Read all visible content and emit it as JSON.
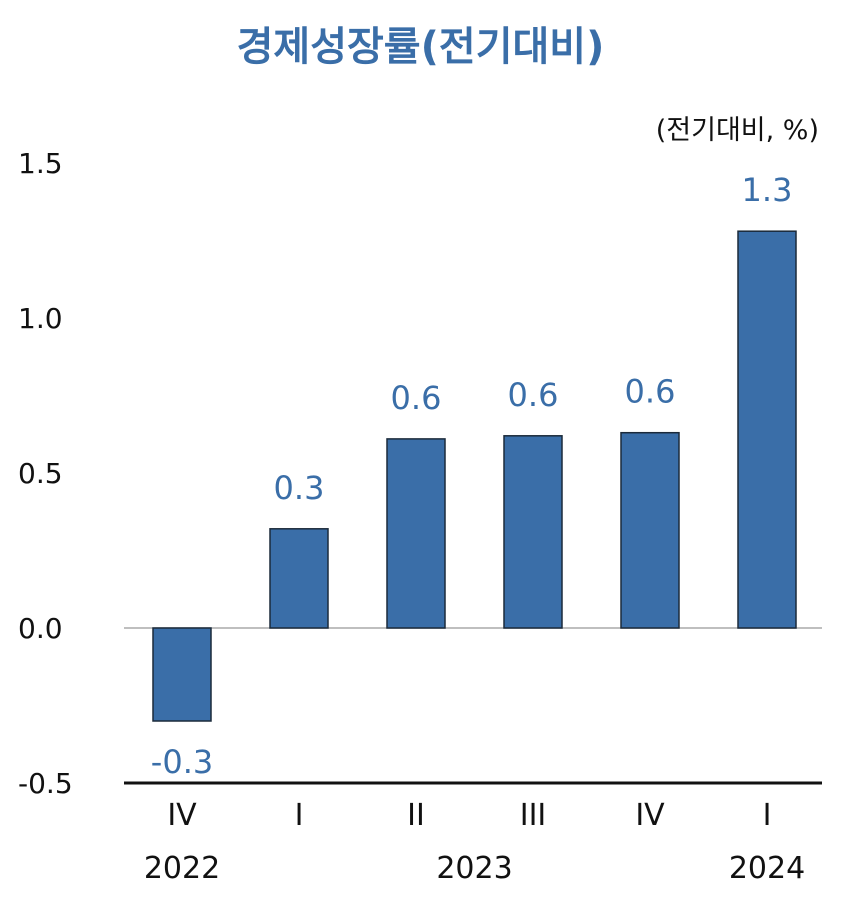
{
  "chart_data": {
    "type": "bar",
    "title": "경제성장률(전기대비)",
    "unit_label": "(전기대비, %)",
    "categories": [
      "IV",
      "I",
      "II",
      "III",
      "IV",
      "I"
    ],
    "years": [
      {
        "label": "2022",
        "from": 0,
        "to": 0
      },
      {
        "label": "2023",
        "from": 1,
        "to": 4
      },
      {
        "label": "2024",
        "from": 5,
        "to": 5
      }
    ],
    "values": [
      -0.3,
      0.32,
      0.61,
      0.62,
      0.63,
      1.28
    ],
    "data_labels": [
      "-0.3",
      "0.3",
      "0.6",
      "0.6",
      "0.6",
      "1.3"
    ],
    "yticks": [
      "1.5",
      "1.0",
      "0.5",
      "0.0",
      "-0.5"
    ],
    "ylim": [
      -0.5,
      1.5
    ],
    "bar_color": "#3a6ea8",
    "label_color": "#3a6ea8"
  }
}
